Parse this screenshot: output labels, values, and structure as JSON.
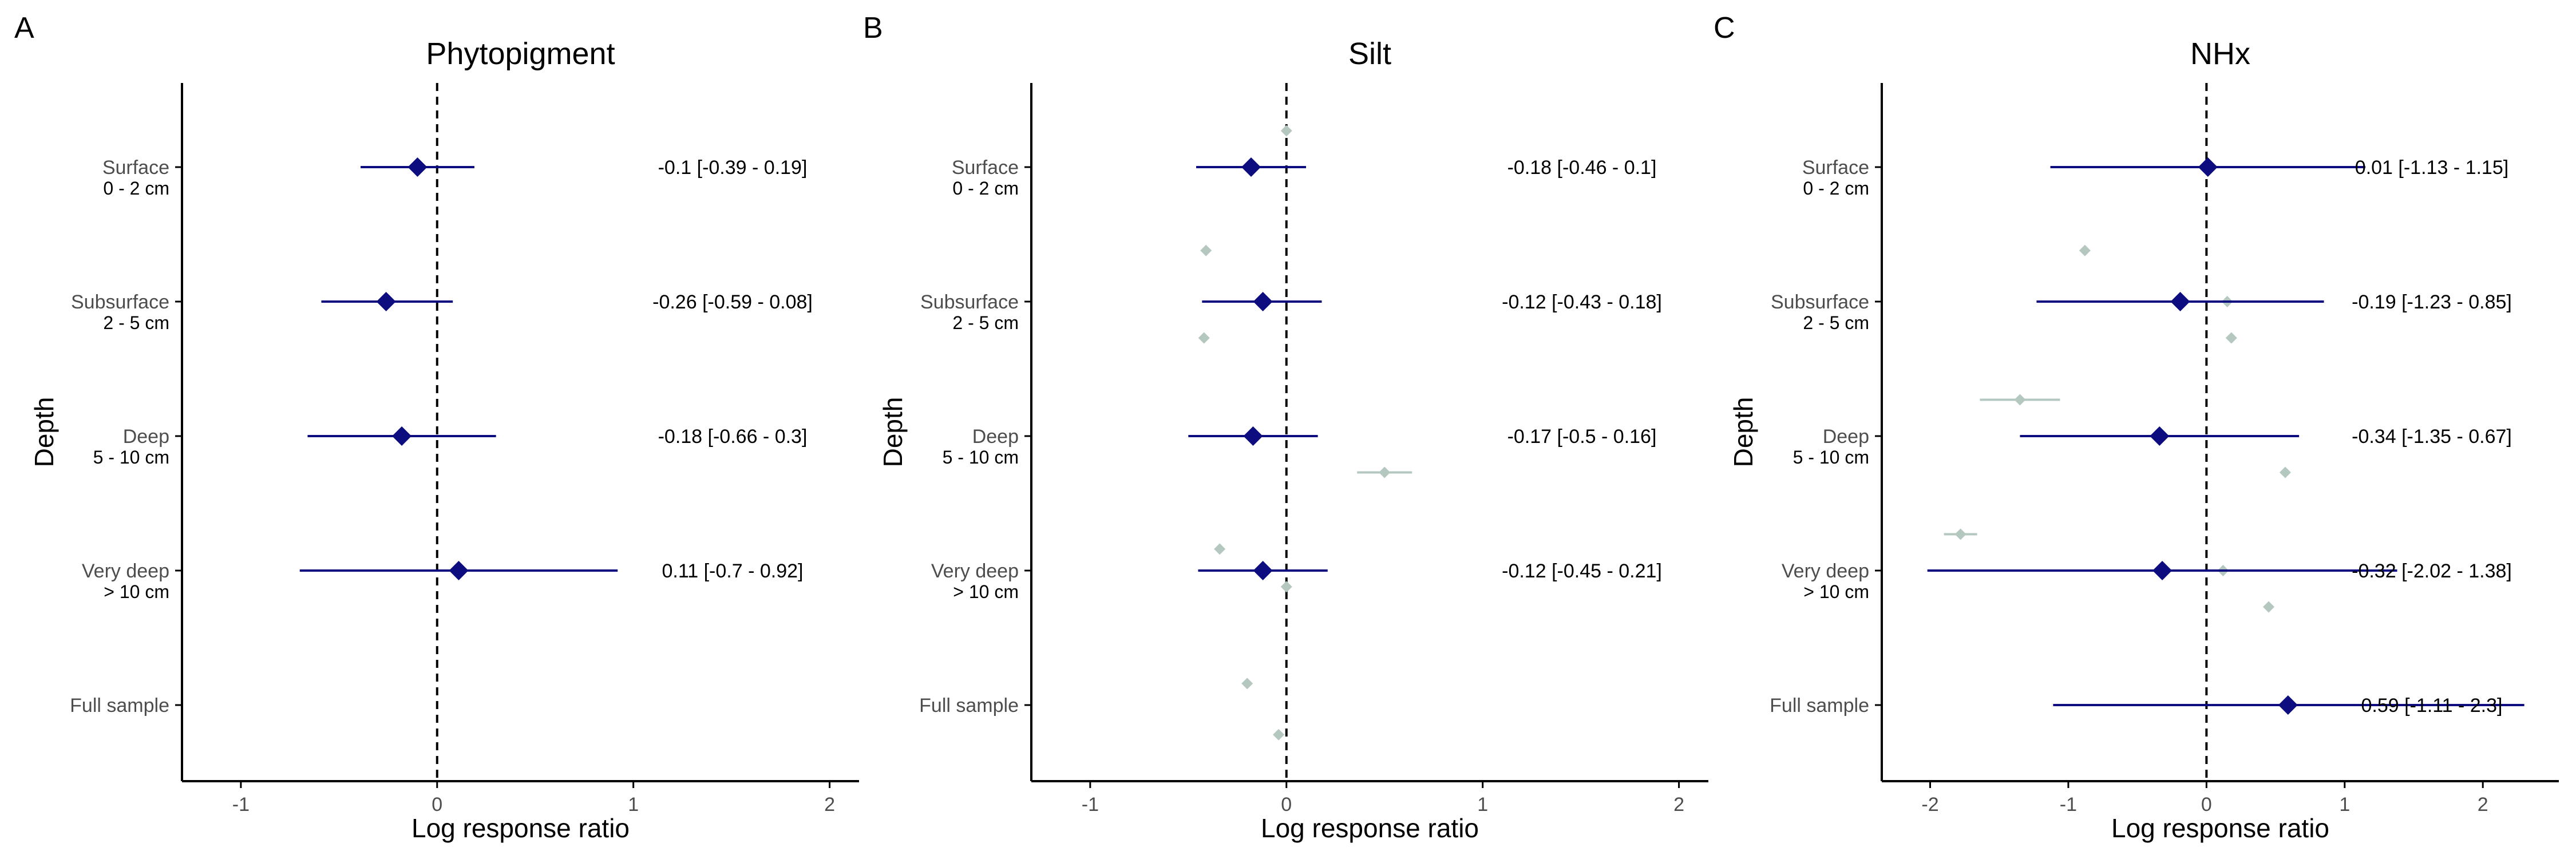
{
  "chart_data": {
    "type": "forest",
    "colors": {
      "main": "#0d0d80",
      "background_points": "#b4c8c0",
      "axis": "#000000",
      "tick_label": "#4d4d4d"
    },
    "categories": [
      {
        "label": "Surface",
        "sub": "0 - 2 cm"
      },
      {
        "label": "Subsurface",
        "sub": "2 - 5 cm"
      },
      {
        "label": "Deep",
        "sub": "5 - 10 cm"
      },
      {
        "label": "Very deep",
        "sub": "> 10 cm"
      },
      {
        "label": "Full sample",
        "sub": ""
      }
    ],
    "panels": [
      {
        "panel": "A",
        "title": "Phytopigment",
        "xlabel": "Log response ratio",
        "ylabel": "Depth",
        "xlim": [
          -1.3,
          2.15
        ],
        "xticks": [
          -1,
          0,
          1,
          2
        ],
        "estimates": [
          {
            "category": "Surface",
            "mean": -0.1,
            "lo": -0.39,
            "hi": 0.19,
            "text": "-0.1 [-0.39 - 0.19]"
          },
          {
            "category": "Subsurface",
            "mean": -0.26,
            "lo": -0.59,
            "hi": 0.08,
            "text": "-0.26 [-0.59 - 0.08]"
          },
          {
            "category": "Deep",
            "mean": -0.18,
            "lo": -0.66,
            "hi": 0.3,
            "text": "-0.18 [-0.66 - 0.3]"
          },
          {
            "category": "Very deep",
            "mean": 0.11,
            "lo": -0.7,
            "hi": 0.92,
            "text": "0.11 [-0.7 - 0.92]"
          }
        ],
        "background_points": []
      },
      {
        "panel": "B",
        "title": "Silt",
        "xlabel": "Log response ratio",
        "ylabel": "Depth",
        "xlim": [
          -1.3,
          2.15
        ],
        "xticks": [
          -1,
          0,
          1,
          2
        ],
        "estimates": [
          {
            "category": "Surface",
            "mean": -0.18,
            "lo": -0.46,
            "hi": 0.1,
            "text": "-0.18 [-0.46 - 0.1]"
          },
          {
            "category": "Subsurface",
            "mean": -0.12,
            "lo": -0.43,
            "hi": 0.18,
            "text": "-0.12 [-0.43 - 0.18]"
          },
          {
            "category": "Deep",
            "mean": -0.17,
            "lo": -0.5,
            "hi": 0.16,
            "text": "-0.17 [-0.5 - 0.16]"
          },
          {
            "category": "Very deep",
            "mean": -0.12,
            "lo": -0.45,
            "hi": 0.21,
            "text": "-0.12 [-0.45 - 0.21]"
          }
        ],
        "background_points": [
          {
            "x": -0.41,
            "y": 0.62
          },
          {
            "x": 0.0,
            "y": -0.27
          },
          {
            "x": -0.42,
            "y": 1.27
          },
          {
            "x": 0.5,
            "y": 2.27,
            "lo": 0.36,
            "hi": 0.64
          },
          {
            "x": -0.34,
            "y": 2.84
          },
          {
            "x": 0.0,
            "y": 3.12
          },
          {
            "x": -0.2,
            "y": 3.84
          },
          {
            "x": -0.04,
            "y": 4.22
          }
        ]
      },
      {
        "panel": "C",
        "title": "NHx",
        "xlabel": "Log response ratio",
        "ylabel": "Depth",
        "xlim": [
          -2.35,
          2.55
        ],
        "xticks": [
          -2,
          -1,
          0,
          1,
          2
        ],
        "estimates": [
          {
            "category": "Surface",
            "mean": 0.01,
            "lo": -1.13,
            "hi": 1.15,
            "text": "0.01 [-1.13 - 1.15]"
          },
          {
            "category": "Subsurface",
            "mean": -0.19,
            "lo": -1.23,
            "hi": 0.85,
            "text": "-0.19 [-1.23 - 0.85]"
          },
          {
            "category": "Deep",
            "mean": -0.34,
            "lo": -1.35,
            "hi": 0.67,
            "text": "-0.34 [-1.35 - 0.67]"
          },
          {
            "category": "Very deep",
            "mean": -0.32,
            "lo": -2.02,
            "hi": 1.38,
            "text": "-0.32 [-2.02 - 1.38]"
          },
          {
            "category": "Full sample",
            "mean": 0.59,
            "lo": -1.11,
            "hi": 2.3,
            "text": "0.59 [-1.11 - 2.3]"
          }
        ],
        "background_points": [
          {
            "x": -0.88,
            "y": 0.62
          },
          {
            "x": 0.15,
            "y": 1.0
          },
          {
            "x": 0.18,
            "y": 1.27
          },
          {
            "x": -1.35,
            "y": 1.73,
            "lo": -1.64,
            "hi": -1.06
          },
          {
            "x": 0.57,
            "y": 2.27
          },
          {
            "x": -1.78,
            "y": 2.73,
            "lo": -1.9,
            "hi": -1.66
          },
          {
            "x": 0.12,
            "y": 3.0
          },
          {
            "x": 0.45,
            "y": 3.27
          }
        ]
      }
    ]
  }
}
